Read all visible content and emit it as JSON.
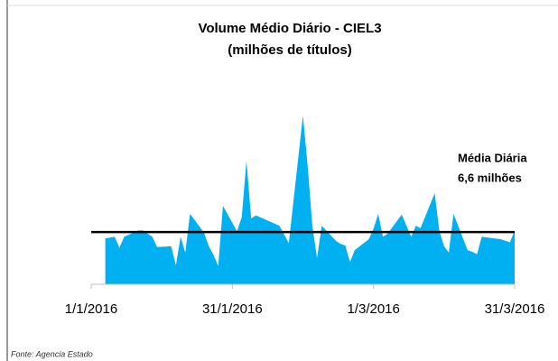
{
  "chart_data": {
    "type": "area",
    "title": [
      "Volume Médio Diário - CIEL3",
      "(milhões de títulos)"
    ],
    "x": [
      "4/1/2016",
      "5/1/2016",
      "6/1/2016",
      "7/1/2016",
      "8/1/2016",
      "11/1/2016",
      "12/1/2016",
      "13/1/2016",
      "14/1/2016",
      "15/1/2016",
      "18/1/2016",
      "19/1/2016",
      "20/1/2016",
      "21/1/2016",
      "22/1/2016",
      "25/1/2016",
      "26/1/2016",
      "27/1/2016",
      "28/1/2016",
      "29/1/2016",
      "1/2/2016",
      "2/2/2016",
      "3/2/2016",
      "4/2/2016",
      "5/2/2016",
      "10/2/2016",
      "11/2/2016",
      "12/2/2016",
      "15/2/2016",
      "16/2/2016",
      "17/2/2016",
      "18/2/2016",
      "19/2/2016",
      "22/2/2016",
      "23/2/2016",
      "24/2/2016",
      "25/2/2016",
      "26/2/2016",
      "29/2/2016",
      "1/3/2016",
      "2/3/2016",
      "3/3/2016",
      "4/3/2016",
      "7/3/2016",
      "8/3/2016",
      "9/3/2016",
      "10/3/2016",
      "11/3/2016",
      "14/3/2016",
      "15/3/2016",
      "16/3/2016",
      "17/3/2016",
      "18/3/2016",
      "21/3/2016",
      "22/3/2016",
      "23/3/2016",
      "24/3/2016",
      "28/3/2016",
      "29/3/2016",
      "30/3/2016",
      "31/3/2016"
    ],
    "values": [
      5.8,
      5.9,
      6.0,
      4.6,
      6.0,
      6.8,
      6.8,
      6.4,
      6.0,
      4.7,
      4.8,
      2.4,
      6.0,
      4.0,
      8.9,
      6.5,
      4.8,
      3.7,
      2.3,
      9.9,
      6.7,
      8.5,
      15.6,
      8.3,
      8.7,
      7.4,
      6.3,
      5.2,
      21.3,
      15.0,
      7.4,
      3.3,
      7.4,
      5.5,
      5.1,
      4.9,
      2.8,
      4.3,
      5.7,
      7.0,
      8.9,
      6.0,
      6.4,
      8.8,
      7.4,
      6.0,
      7.4,
      7.1,
      11.5,
      6.7,
      4.8,
      4.0,
      8.9,
      4.3,
      4.1,
      3.8,
      6.0,
      5.7,
      5.5,
      5.3,
      6.8
    ],
    "color": "#00b0f0",
    "mean": 6.6,
    "mean_color": "#000000",
    "annotation": [
      "Média Diária",
      "6,6 milhões"
    ],
    "xlim": [
      "1/1/2016",
      "31/3/2016"
    ],
    "xticks": [
      "1/1/2016",
      "31/1/2016",
      "1/3/2016",
      "31/3/2016"
    ],
    "ylim": [
      0,
      22
    ],
    "source": "Fonte: Agencia Estado"
  }
}
